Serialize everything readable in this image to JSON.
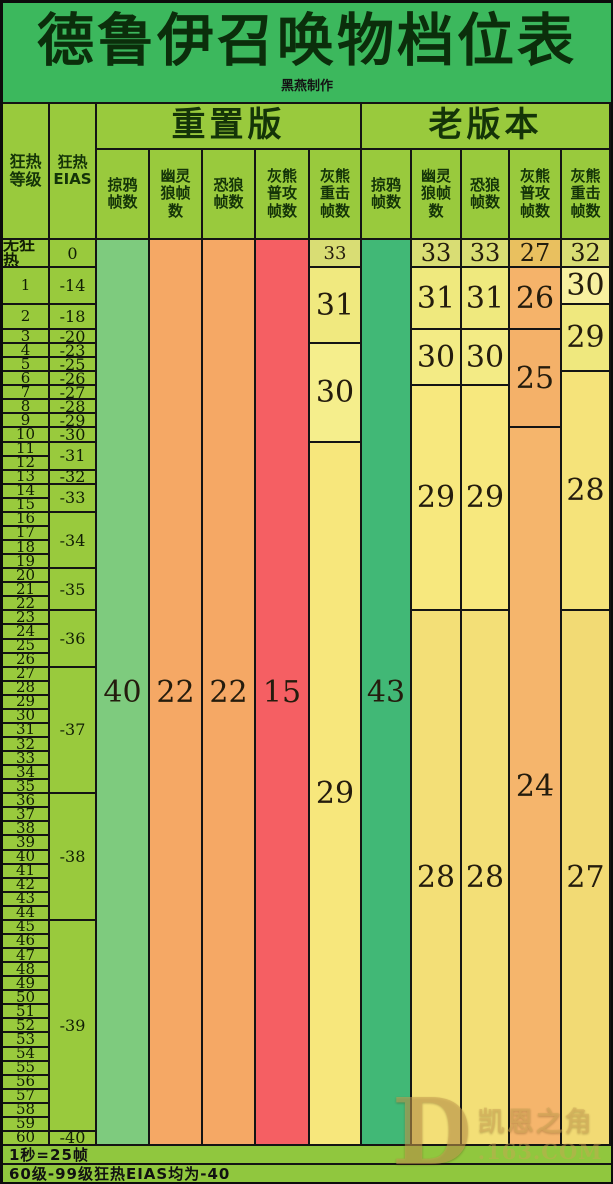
{
  "title": "德鲁伊召唤物档位表",
  "credit": "黑燕制作",
  "left_headers": {
    "level": "狂热\n等级",
    "eias": "狂热\nEIAS"
  },
  "watermark": {
    "logo_letter": "D",
    "site_name": "凯恩之角",
    "site_domain": ".163.COM"
  },
  "colors": {
    "frame": "#0c0c0c",
    "grid": "#141414",
    "title_bg": "#3cb85d",
    "title_text": "#0b2e0b",
    "header_bg": "#99ca3d",
    "label_bg": "#99ca3d",
    "footer_bg": "#90c73e",
    "number_text": "#241c0d",
    "watermark_gold": "#cca454"
  },
  "chart_data": {
    "type": "table",
    "title": "德鲁伊召唤物档位表",
    "row_header": "狂热等级",
    "eias_header": "狂热EIAS",
    "level_index_note": "index 0 = 无狂热 (no Fanaticism); indices 1-60 = fanaticism levels",
    "level_labels": [
      "无狂热",
      "1",
      "2",
      "3",
      "4",
      "5",
      "6",
      "7",
      "8",
      "9",
      "10",
      "11",
      "12",
      "13",
      "14",
      "15",
      "16",
      "17",
      "18",
      "19",
      "20",
      "21",
      "22",
      "23",
      "24",
      "25",
      "26",
      "27",
      "28",
      "29",
      "30",
      "31",
      "32",
      "33",
      "34",
      "35",
      "36",
      "37",
      "38",
      "39",
      "40",
      "41",
      "42",
      "43",
      "44",
      "45",
      "46",
      "47",
      "48",
      "49",
      "50",
      "51",
      "52",
      "53",
      "54",
      "55",
      "56",
      "57",
      "58",
      "59",
      "60"
    ],
    "eias_segments": [
      {
        "from": 0,
        "to": 0,
        "value": "0"
      },
      {
        "from": 1,
        "to": 1,
        "value": "-14"
      },
      {
        "from": 2,
        "to": 2,
        "value": "-18"
      },
      {
        "from": 3,
        "to": 3,
        "value": "-20"
      },
      {
        "from": 4,
        "to": 4,
        "value": "-23"
      },
      {
        "from": 5,
        "to": 5,
        "value": "-25"
      },
      {
        "from": 6,
        "to": 6,
        "value": "-26"
      },
      {
        "from": 7,
        "to": 7,
        "value": "-27"
      },
      {
        "from": 8,
        "to": 8,
        "value": "-28"
      },
      {
        "from": 9,
        "to": 9,
        "value": "-29"
      },
      {
        "from": 10,
        "to": 10,
        "value": "-30"
      },
      {
        "from": 11,
        "to": 12,
        "value": "-31"
      },
      {
        "from": 13,
        "to": 13,
        "value": "-32"
      },
      {
        "from": 14,
        "to": 15,
        "value": "-33"
      },
      {
        "from": 16,
        "to": 19,
        "value": "-34"
      },
      {
        "from": 20,
        "to": 22,
        "value": "-35"
      },
      {
        "from": 23,
        "to": 26,
        "value": "-36"
      },
      {
        "from": 27,
        "to": 35,
        "value": "-37"
      },
      {
        "from": 36,
        "to": 44,
        "value": "-38"
      },
      {
        "from": 45,
        "to": 59,
        "value": "-39"
      },
      {
        "from": 60,
        "to": 60,
        "value": "-40"
      }
    ],
    "groups": [
      {
        "name": "重置版",
        "columns": [
          {
            "header": "掠鸦\n帧数",
            "segments": [
              {
                "from": 0,
                "to": 60,
                "value": "40",
                "color": "#7ecb7e"
              }
            ]
          },
          {
            "header": "幽灵\n狼帧\n数",
            "segments": [
              {
                "from": 0,
                "to": 60,
                "value": "22",
                "color": "#f5a865"
              }
            ]
          },
          {
            "header": "恐狼\n帧数",
            "segments": [
              {
                "from": 0,
                "to": 60,
                "value": "22",
                "color": "#f5a865"
              }
            ]
          },
          {
            "header": "灰熊\n普攻\n帧数",
            "segments": [
              {
                "from": 0,
                "to": 60,
                "value": "15",
                "color": "#f55f63"
              }
            ]
          },
          {
            "header": "灰熊\n重击\n帧数",
            "segments": [
              {
                "from": 0,
                "to": 0,
                "value": "33",
                "color": "#d9dd74",
                "size": 18
              },
              {
                "from": 1,
                "to": 3,
                "value": "31",
                "color": "#f0e97f"
              },
              {
                "from": 4,
                "to": 10,
                "value": "30",
                "color": "#f5ee8c"
              },
              {
                "from": 11,
                "to": 60,
                "value": "29",
                "color": "#f7e77c"
              }
            ]
          }
        ]
      },
      {
        "name": "老版本",
        "columns": [
          {
            "header": "掠鸦\n帧数",
            "segments": [
              {
                "from": 0,
                "to": 60,
                "value": "43",
                "color": "#41b876"
              }
            ]
          },
          {
            "header": "幽灵\n狼帧\n数",
            "segments": [
              {
                "from": 0,
                "to": 0,
                "value": "33",
                "color": "#d9dd74"
              },
              {
                "from": 1,
                "to": 2,
                "value": "31",
                "color": "#efe97e"
              },
              {
                "from": 3,
                "to": 6,
                "value": "30",
                "color": "#f3eb85"
              },
              {
                "from": 7,
                "to": 22,
                "value": "29",
                "color": "#f7e87e"
              },
              {
                "from": 23,
                "to": 60,
                "value": "28",
                "color": "#f3df77"
              }
            ]
          },
          {
            "header": "恐狼\n帧数",
            "segments": [
              {
                "from": 0,
                "to": 0,
                "value": "33",
                "color": "#d9dd74"
              },
              {
                "from": 1,
                "to": 2,
                "value": "31",
                "color": "#efe97e"
              },
              {
                "from": 3,
                "to": 6,
                "value": "30",
                "color": "#f3eb85"
              },
              {
                "from": 7,
                "to": 22,
                "value": "29",
                "color": "#f7e87e"
              },
              {
                "from": 23,
                "to": 60,
                "value": "28",
                "color": "#f3df77"
              }
            ]
          },
          {
            "header": "灰熊\n普攻\n帧数",
            "segments": [
              {
                "from": 0,
                "to": 0,
                "value": "27",
                "color": "#e9c05f"
              },
              {
                "from": 1,
                "to": 2,
                "value": "26",
                "color": "#f5b36a"
              },
              {
                "from": 3,
                "to": 9,
                "value": "25",
                "color": "#f4b169"
              },
              {
                "from": 10,
                "to": 60,
                "value": "24",
                "color": "#f5b56c"
              }
            ]
          },
          {
            "header": "灰熊\n重击\n帧数",
            "segments": [
              {
                "from": 0,
                "to": 0,
                "value": "32",
                "color": "#d9dd74"
              },
              {
                "from": 1,
                "to": 1,
                "value": "30",
                "color": "#f8f0a0"
              },
              {
                "from": 2,
                "to": 5,
                "value": "29",
                "color": "#efe87e"
              },
              {
                "from": 6,
                "to": 22,
                "value": "28",
                "color": "#f5e37a"
              },
              {
                "from": 23,
                "to": 60,
                "value": "27",
                "color": "#f2da74"
              }
            ]
          }
        ]
      }
    ],
    "notes": [
      "1秒=25帧",
      "60级-99级狂热EIAS均为-40"
    ]
  }
}
